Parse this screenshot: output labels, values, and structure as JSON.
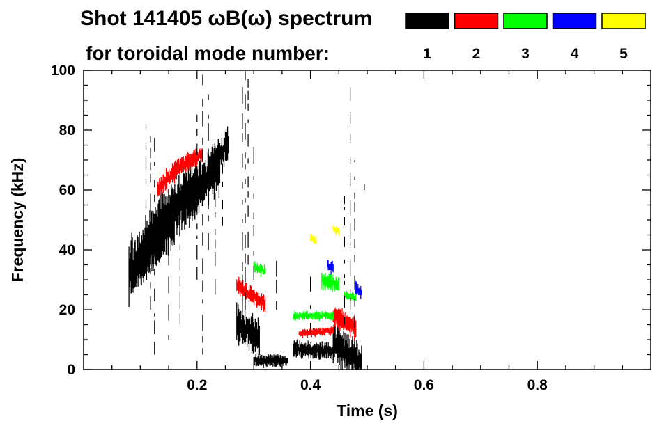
{
  "chart_data": {
    "type": "heatmap",
    "title": "Shot 141405 ωB(ω) spectrum",
    "subtitle": "for toroidal mode number:",
    "xlabel": "Time (s)",
    "ylabel": "Frequency (kHz)",
    "xlim": [
      0.0,
      1.0
    ],
    "ylim": [
      0,
      100
    ],
    "xticks": [
      0.2,
      0.4,
      0.6,
      0.8
    ],
    "xtick_labels": [
      "0.2",
      "0.4",
      "0.6",
      "0.8"
    ],
    "yticks": [
      0,
      20,
      40,
      60,
      80,
      100
    ],
    "ytick_labels": [
      "0",
      "20",
      "40",
      "60",
      "80",
      "100"
    ],
    "legend_placement": "top-right",
    "legend": [
      {
        "label": "1",
        "color": "#000000"
      },
      {
        "label": "2",
        "color": "#ff0000"
      },
      {
        "label": "3",
        "color": "#00ff00"
      },
      {
        "label": "4",
        "color": "#0000ff"
      },
      {
        "label": "5",
        "color": "#ffff00"
      }
    ],
    "series": [
      {
        "name": "1",
        "color": "#000000",
        "segments": [
          {
            "t0": 0.08,
            "t1": 0.14,
            "f0": 32,
            "f1": 50,
            "w": 14
          },
          {
            "t0": 0.1,
            "t1": 0.16,
            "f0": 36,
            "f1": 48,
            "w": 10
          },
          {
            "t0": 0.14,
            "t1": 0.2,
            "f0": 50,
            "f1": 60,
            "w": 14
          },
          {
            "t0": 0.18,
            "t1": 0.24,
            "f0": 58,
            "f1": 68,
            "w": 12
          },
          {
            "t0": 0.22,
            "t1": 0.255,
            "f0": 66,
            "f1": 76,
            "w": 8
          },
          {
            "t0": 0.27,
            "t1": 0.31,
            "f0": 15,
            "f1": 11,
            "w": 9
          },
          {
            "t0": 0.3,
            "t1": 0.36,
            "f0": 3,
            "f1": 3,
            "w": 3
          },
          {
            "t0": 0.37,
            "t1": 0.44,
            "f0": 7,
            "f1": 6,
            "w": 4
          },
          {
            "t0": 0.44,
            "t1": 0.49,
            "f0": 9,
            "f1": 2,
            "w": 9
          }
        ]
      },
      {
        "name": "2",
        "color": "#ff0000",
        "segments": [
          {
            "t0": 0.13,
            "t1": 0.17,
            "f0": 60,
            "f1": 68,
            "w": 5
          },
          {
            "t0": 0.17,
            "t1": 0.21,
            "f0": 68,
            "f1": 72,
            "w": 4
          },
          {
            "t0": 0.27,
            "t1": 0.32,
            "f0": 28,
            "f1": 22,
            "w": 4
          },
          {
            "t0": 0.38,
            "t1": 0.44,
            "f0": 12,
            "f1": 13,
            "w": 2
          },
          {
            "t0": 0.44,
            "t1": 0.48,
            "f0": 18,
            "f1": 14,
            "w": 5
          }
        ]
      },
      {
        "name": "3",
        "color": "#00ff00",
        "segments": [
          {
            "t0": 0.3,
            "t1": 0.32,
            "f0": 34,
            "f1": 33,
            "w": 3
          },
          {
            "t0": 0.37,
            "t1": 0.44,
            "f0": 18,
            "f1": 18,
            "w": 2
          },
          {
            "t0": 0.42,
            "t1": 0.45,
            "f0": 30,
            "f1": 28,
            "w": 4
          },
          {
            "t0": 0.46,
            "t1": 0.48,
            "f0": 25,
            "f1": 24,
            "w": 2
          }
        ]
      },
      {
        "name": "4",
        "color": "#0000ff",
        "segments": [
          {
            "t0": 0.43,
            "t1": 0.44,
            "f0": 35,
            "f1": 34,
            "w": 3
          },
          {
            "t0": 0.48,
            "t1": 0.49,
            "f0": 27,
            "f1": 26,
            "w": 3
          }
        ]
      },
      {
        "name": "5",
        "color": "#ffff00",
        "segments": [
          {
            "t0": 0.4,
            "t1": 0.41,
            "f0": 44,
            "f1": 43,
            "w": 2
          },
          {
            "t0": 0.44,
            "t1": 0.45,
            "f0": 47,
            "f1": 46,
            "w": 2
          }
        ]
      }
    ]
  }
}
